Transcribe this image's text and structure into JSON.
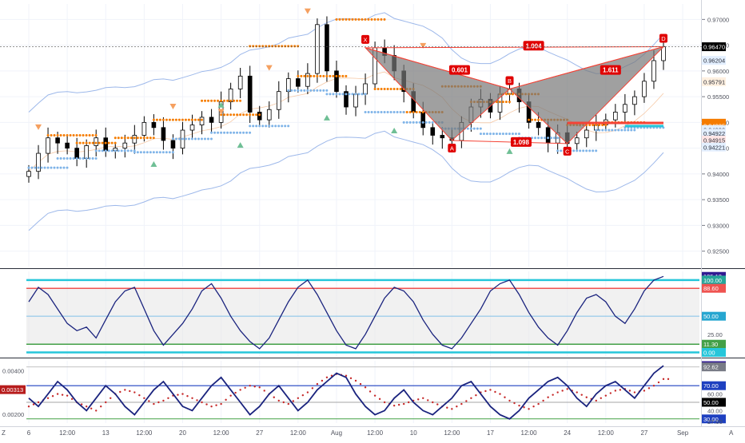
{
  "chart_data": [
    {
      "type": "candlestick",
      "title": "",
      "ylim": [
        0.922,
        0.973
      ],
      "y_ticks": [
        "0.97000",
        "0.96500",
        "0.96000",
        "0.95500",
        "0.95000",
        "0.94500",
        "0.94000",
        "0.93500",
        "0.93000",
        "0.92500"
      ],
      "y_tick_values": [
        0.97,
        0.965,
        0.96,
        0.955,
        0.95,
        0.945,
        0.94,
        0.935,
        0.93,
        0.925
      ],
      "price_tags": [
        {
          "label": "0.96470",
          "value": 0.9647,
          "color": "#000000"
        },
        {
          "label": "0.96204",
          "value": 0.96204,
          "color": "#e3efff"
        },
        {
          "label": "0.95791",
          "value": 0.95791,
          "color": "#fff0e0"
        },
        {
          "label": "0.94985",
          "value": 0.94985,
          "color": "#f57c00"
        },
        {
          "label": "0.94985",
          "value": 0.94935,
          "color": "#f57c00"
        },
        {
          "label": "0.94932",
          "value": 0.94862,
          "color": "#e3efff"
        },
        {
          "label": "0.94922",
          "value": 0.9479,
          "color": "#e3efff"
        },
        {
          "label": "0.94915",
          "value": 0.94655,
          "color": "#ffe5e5"
        },
        {
          "label": "0.94221",
          "value": 0.94521,
          "color": "#e3efff"
        }
      ],
      "pattern": {
        "points": [
          {
            "label": "X",
            "x": 35.0,
            "y": 0.9645
          },
          {
            "label": "A",
            "x": 44.0,
            "y": 0.9465
          },
          {
            "label": "B",
            "x": 50.0,
            "y": 0.9565
          },
          {
            "label": "C",
            "x": 56.0,
            "y": 0.9459
          },
          {
            "label": "D",
            "x": 66.0,
            "y": 0.9647
          }
        ],
        "ratios": [
          {
            "label": "0.601",
            "x": 44.8,
            "y": 0.9602
          },
          {
            "label": "1.611",
            "x": 60.5,
            "y": 0.9602
          },
          {
            "label": "1.004",
            "x": 52.5,
            "y": 0.9649
          },
          {
            "label": "1.098",
            "x": 51.2,
            "y": 0.9462
          }
        ]
      },
      "series": [
        {
          "name": "",
          "values": [
            0.9405,
            0.944,
            0.947,
            0.946,
            0.945,
            0.943,
            0.9455,
            0.947,
            0.9445,
            0.945,
            0.946,
            0.9475,
            0.95,
            0.949,
            0.9465,
            0.945,
            0.9485,
            0.9495,
            0.951,
            0.95,
            0.954,
            0.9565,
            0.959,
            0.952,
            0.9505,
            0.9525,
            0.956,
            0.9585,
            0.957,
            0.9595,
            0.969,
            0.96,
            0.956,
            0.953,
            0.9555,
            0.9575,
            0.9645,
            0.963,
            0.96,
            0.956,
            0.952,
            0.949,
            0.9475,
            0.947,
            0.9465,
            0.95,
            0.953,
            0.9545,
            0.952,
            0.9555,
            0.9565,
            0.954,
            0.95,
            0.949,
            0.946,
            0.948,
            0.9459,
            0.947,
            0.9485,
            0.9495,
            0.9505,
            0.952,
            0.9535,
            0.955,
            0.958,
            0.962,
            0.9647
          ]
        }
      ]
    },
    {
      "type": "line",
      "title": "",
      "ylim": [
        -5,
        112
      ],
      "y_ticks": [
        {
          "label": "105.13",
          "value": 105.13,
          "color": "#311b92"
        },
        {
          "label": "100.00",
          "value": 100.0,
          "color": "#26a69a"
        },
        {
          "label": "88.60",
          "value": 88.6,
          "color": "#ef5350"
        },
        {
          "label": "50.00",
          "value": 50.0,
          "color": "#26a6d0"
        },
        {
          "label": "25.00",
          "value": 25.0,
          "color": ""
        },
        {
          "label": "11.30",
          "value": 11.3,
          "color": "#43a047"
        },
        {
          "label": "0.00",
          "value": 0.0,
          "color": "#26c6da"
        }
      ],
      "bands": {
        "upper": 100,
        "upper_inner": 88.6,
        "mid": 50,
        "lower_inner": 11.3,
        "lower": 0
      },
      "series": [
        {
          "name": "",
          "values": [
            70,
            90,
            80,
            60,
            40,
            30,
            35,
            20,
            45,
            70,
            85,
            90,
            60,
            30,
            10,
            25,
            40,
            60,
            85,
            95,
            75,
            50,
            30,
            15,
            5,
            20,
            45,
            70,
            90,
            100,
            80,
            55,
            30,
            10,
            5,
            25,
            50,
            75,
            90,
            85,
            70,
            45,
            25,
            10,
            5,
            20,
            40,
            60,
            85,
            95,
            100,
            80,
            55,
            35,
            20,
            10,
            30,
            55,
            75,
            80,
            70,
            50,
            40,
            60,
            85,
            100,
            105
          ]
        }
      ]
    },
    {
      "type": "line",
      "title": "",
      "left_ylim": [
        0.0016,
        0.00445
      ],
      "left_ticks": [
        "0.00400",
        "0.00200"
      ],
      "left_tick_values": [
        0.004,
        0.002
      ],
      "left_tag": {
        "label": "0.00313",
        "value": 0.00313
      },
      "ylim": [
        25,
        100
      ],
      "y_ticks": [
        {
          "label": "94.20",
          "value": 94.2,
          "color": "#311b92"
        },
        {
          "label": "92.62",
          "value": 92.62,
          "color": "#787b86"
        },
        {
          "label": "70.00",
          "value": 70.0,
          "color": "#1e40c0"
        },
        {
          "label": "60.00",
          "value": 60.0,
          "color": ""
        },
        {
          "label": "50.00",
          "value": 50.0,
          "color": "#000000"
        },
        {
          "label": "40.00",
          "value": 40.0,
          "color": ""
        },
        {
          "label": "30.00",
          "value": 30.0,
          "color": "#1e40c0"
        },
        {
          "label": "27.00",
          "value": 27.0,
          "color": ""
        }
      ],
      "series": [
        {
          "name": "",
          "values": [
            55,
            45,
            60,
            75,
            65,
            50,
            40,
            55,
            70,
            60,
            45,
            35,
            50,
            65,
            75,
            60,
            45,
            40,
            55,
            70,
            80,
            65,
            50,
            35,
            45,
            60,
            70,
            55,
            40,
            50,
            65,
            75,
            85,
            80,
            60,
            45,
            35,
            40,
            55,
            65,
            50,
            40,
            35,
            45,
            55,
            70,
            75,
            60,
            45,
            35,
            30,
            40,
            55,
            65,
            75,
            80,
            70,
            55,
            45,
            60,
            70,
            75,
            65,
            55,
            70,
            85,
            94
          ]
        },
        {
          "name": "",
          "values": [
            45,
            50,
            55,
            60,
            58,
            50,
            45,
            40,
            50,
            60,
            65,
            62,
            55,
            48,
            52,
            58,
            60,
            55,
            50,
            45,
            48,
            58,
            65,
            70,
            68,
            60,
            52,
            48,
            55,
            62,
            72,
            80,
            84,
            82,
            76,
            68,
            58,
            50,
            46,
            48,
            52,
            55,
            50,
            45,
            42,
            48,
            55,
            62,
            65,
            60,
            52,
            46,
            42,
            48,
            56,
            62,
            66,
            62,
            56,
            52,
            58,
            64,
            66,
            62,
            64,
            70,
            78
          ]
        }
      ]
    }
  ],
  "x_axis": {
    "labels": [
      "6",
      "12:00",
      "13",
      "12:00",
      "20",
      "12:00",
      "27",
      "12:00",
      "Aug",
      "12:00",
      "10",
      "12:00",
      "17",
      "12:00",
      "24",
      "12:00",
      "27",
      "Sep"
    ],
    "positions": [
      0,
      4,
      8,
      12,
      16,
      20,
      24,
      28,
      32,
      36,
      40,
      44,
      48,
      52,
      56,
      60,
      64,
      68
    ]
  },
  "corner_labels": {
    "left": "Z",
    "right": "A"
  },
  "colors": {
    "candle": "#000000",
    "pattern_line": "#f44336",
    "pattern_fill": "#787878",
    "badge": "#e00000",
    "ratio_badge": "#e00000",
    "bb": "#9db8ea",
    "osc_line": "#1a237e",
    "orange_dots": "#f57c00",
    "blue_dots": "#7fb4e8",
    "green_tri": "#6fbf95",
    "orange_tri": "#f5a060"
  }
}
